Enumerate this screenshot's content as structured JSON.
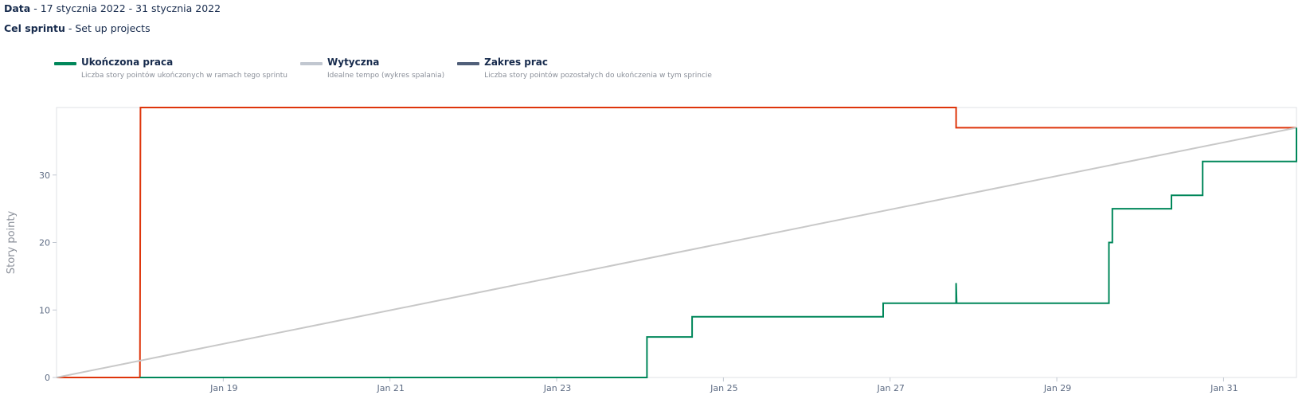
{
  "header": {
    "date_label": "Data",
    "date_value": " - 17 stycznia 2022 - 31 stycznia 2022",
    "goal_label": "Cel sprintu",
    "goal_value": " - Set up projects"
  },
  "legend": [
    {
      "name": "Ukończona praca",
      "desc": "Liczba story pointów ukończonych w ramach tego sprintu",
      "color": "#00875a"
    },
    {
      "name": "Wytyczna",
      "desc": "Idealne tempo (wykres spalania)",
      "color": "#c1c7d0"
    },
    {
      "name": "Zakres prac",
      "desc": "Liczba story pointów pozostałych do ukończenia w tym sprincie",
      "color": "#505f79"
    }
  ],
  "chart_data": {
    "type": "line",
    "ylabel": "Story pointy",
    "xlabel": "",
    "xlim": [
      "2022-01-17T00:00",
      "2022-01-31T21:00"
    ],
    "ylim": [
      0,
      40
    ],
    "yticks": [
      0,
      10,
      20,
      30
    ],
    "xticks": [
      "Jan 19",
      "Jan 21",
      "Jan 23",
      "Jan 25",
      "Jan 27",
      "Jan 29",
      "Jan 31"
    ],
    "xtick_dates": [
      "2022-01-19T00:00",
      "2022-01-21T00:00",
      "2022-01-23T00:00",
      "2022-01-25T00:00",
      "2022-01-27T00:00",
      "2022-01-29T00:00",
      "2022-01-31T00:00"
    ],
    "grid": false,
    "series": [
      {
        "name": "Zakres prac",
        "color": "#de350b",
        "step": true,
        "points": [
          [
            "2022-01-17T00:00",
            0
          ],
          [
            "2022-01-18T00:00",
            0
          ],
          [
            "2022-01-18T00:10",
            40
          ],
          [
            "2022-01-27T19:00",
            40
          ],
          [
            "2022-01-27T19:00",
            37
          ],
          [
            "2022-01-31T21:00",
            37
          ]
        ]
      },
      {
        "name": "Wytyczna",
        "color": "#c8c8c8",
        "step": false,
        "points": [
          [
            "2022-01-17T00:00",
            0
          ],
          [
            "2022-01-31T21:00",
            37
          ]
        ]
      },
      {
        "name": "Ukończona praca",
        "color": "#00875a",
        "step": true,
        "points": [
          [
            "2022-01-18T00:00",
            0
          ],
          [
            "2022-01-24T02:00",
            0
          ],
          [
            "2022-01-24T02:00",
            6
          ],
          [
            "2022-01-24T15:00",
            6
          ],
          [
            "2022-01-24T15:00",
            9
          ],
          [
            "2022-01-26T22:00",
            9
          ],
          [
            "2022-01-26T22:00",
            11
          ],
          [
            "2022-01-27T19:00",
            11
          ],
          [
            "2022-01-27T19:00",
            14
          ],
          [
            "2022-01-27T19:10",
            11
          ],
          [
            "2022-01-29T15:00",
            11
          ],
          [
            "2022-01-29T15:00",
            20
          ],
          [
            "2022-01-29T16:00",
            20
          ],
          [
            "2022-01-29T16:00",
            25
          ],
          [
            "2022-01-30T09:00",
            25
          ],
          [
            "2022-01-30T09:00",
            27
          ],
          [
            "2022-01-30T18:00",
            27
          ],
          [
            "2022-01-30T18:00",
            32
          ],
          [
            "2022-01-31T21:00",
            32
          ],
          [
            "2022-01-31T21:00",
            37
          ]
        ]
      }
    ]
  }
}
